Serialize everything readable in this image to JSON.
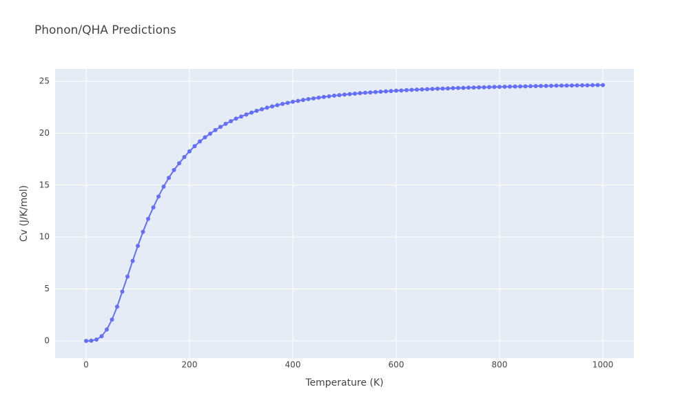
{
  "chart_data": {
    "type": "line",
    "title": "Phonon/QHA Predictions",
    "x_label": "Temperature (K)",
    "y_label": "Cv (J/K/mol)",
    "x": [
      0,
      10,
      20,
      30,
      40,
      50,
      60,
      70,
      80,
      90,
      100,
      110,
      120,
      130,
      140,
      150,
      160,
      170,
      180,
      190,
      200,
      210,
      220,
      230,
      240,
      250,
      260,
      270,
      280,
      290,
      300,
      310,
      320,
      330,
      340,
      350,
      360,
      370,
      380,
      390,
      400,
      410,
      420,
      430,
      440,
      450,
      460,
      470,
      480,
      490,
      500,
      510,
      520,
      530,
      540,
      550,
      560,
      570,
      580,
      590,
      600,
      610,
      620,
      630,
      640,
      650,
      660,
      670,
      680,
      690,
      700,
      710,
      720,
      730,
      740,
      750,
      760,
      770,
      780,
      790,
      800,
      810,
      820,
      830,
      840,
      850,
      860,
      870,
      880,
      890,
      900,
      910,
      920,
      930,
      940,
      950,
      960,
      970,
      980,
      990,
      1000
    ],
    "series": [
      {
        "name": "Cv",
        "color": "#636efa",
        "values": [
          0,
          0.02,
          0.13,
          0.45,
          1.1,
          2.05,
          3.3,
          4.75,
          6.2,
          7.7,
          9.15,
          10.5,
          11.75,
          12.85,
          13.9,
          14.85,
          15.7,
          16.45,
          17.1,
          17.7,
          18.25,
          18.75,
          19.2,
          19.6,
          19.95,
          20.3,
          20.6,
          20.9,
          21.15,
          21.4,
          21.6,
          21.8,
          21.98,
          22.15,
          22.3,
          22.45,
          22.58,
          22.7,
          22.82,
          22.92,
          23.02,
          23.11,
          23.2,
          23.28,
          23.35,
          23.42,
          23.49,
          23.55,
          23.61,
          23.66,
          23.71,
          23.76,
          23.8,
          23.85,
          23.89,
          23.92,
          23.96,
          23.99,
          24.03,
          24.06,
          24.09,
          24.11,
          24.14,
          24.17,
          24.19,
          24.21,
          24.23,
          24.26,
          24.28,
          24.29,
          24.31,
          24.33,
          24.35,
          24.36,
          24.38,
          24.39,
          24.41,
          24.42,
          24.43,
          24.45,
          24.46,
          24.47,
          24.48,
          24.49,
          24.5,
          24.51,
          24.52,
          24.53,
          24.54,
          24.55,
          24.56,
          24.57,
          24.58,
          24.58,
          24.59,
          24.6,
          24.61,
          24.61,
          24.62,
          24.63,
          24.63
        ]
      }
    ],
    "xlim": [
      -60,
      1060
    ],
    "ylim": [
      -1.66,
      26.19
    ],
    "xticks": [
      0,
      200,
      400,
      600,
      800,
      1000
    ],
    "yticks": [
      0,
      5,
      10,
      15,
      20,
      25
    ],
    "grid": true
  }
}
